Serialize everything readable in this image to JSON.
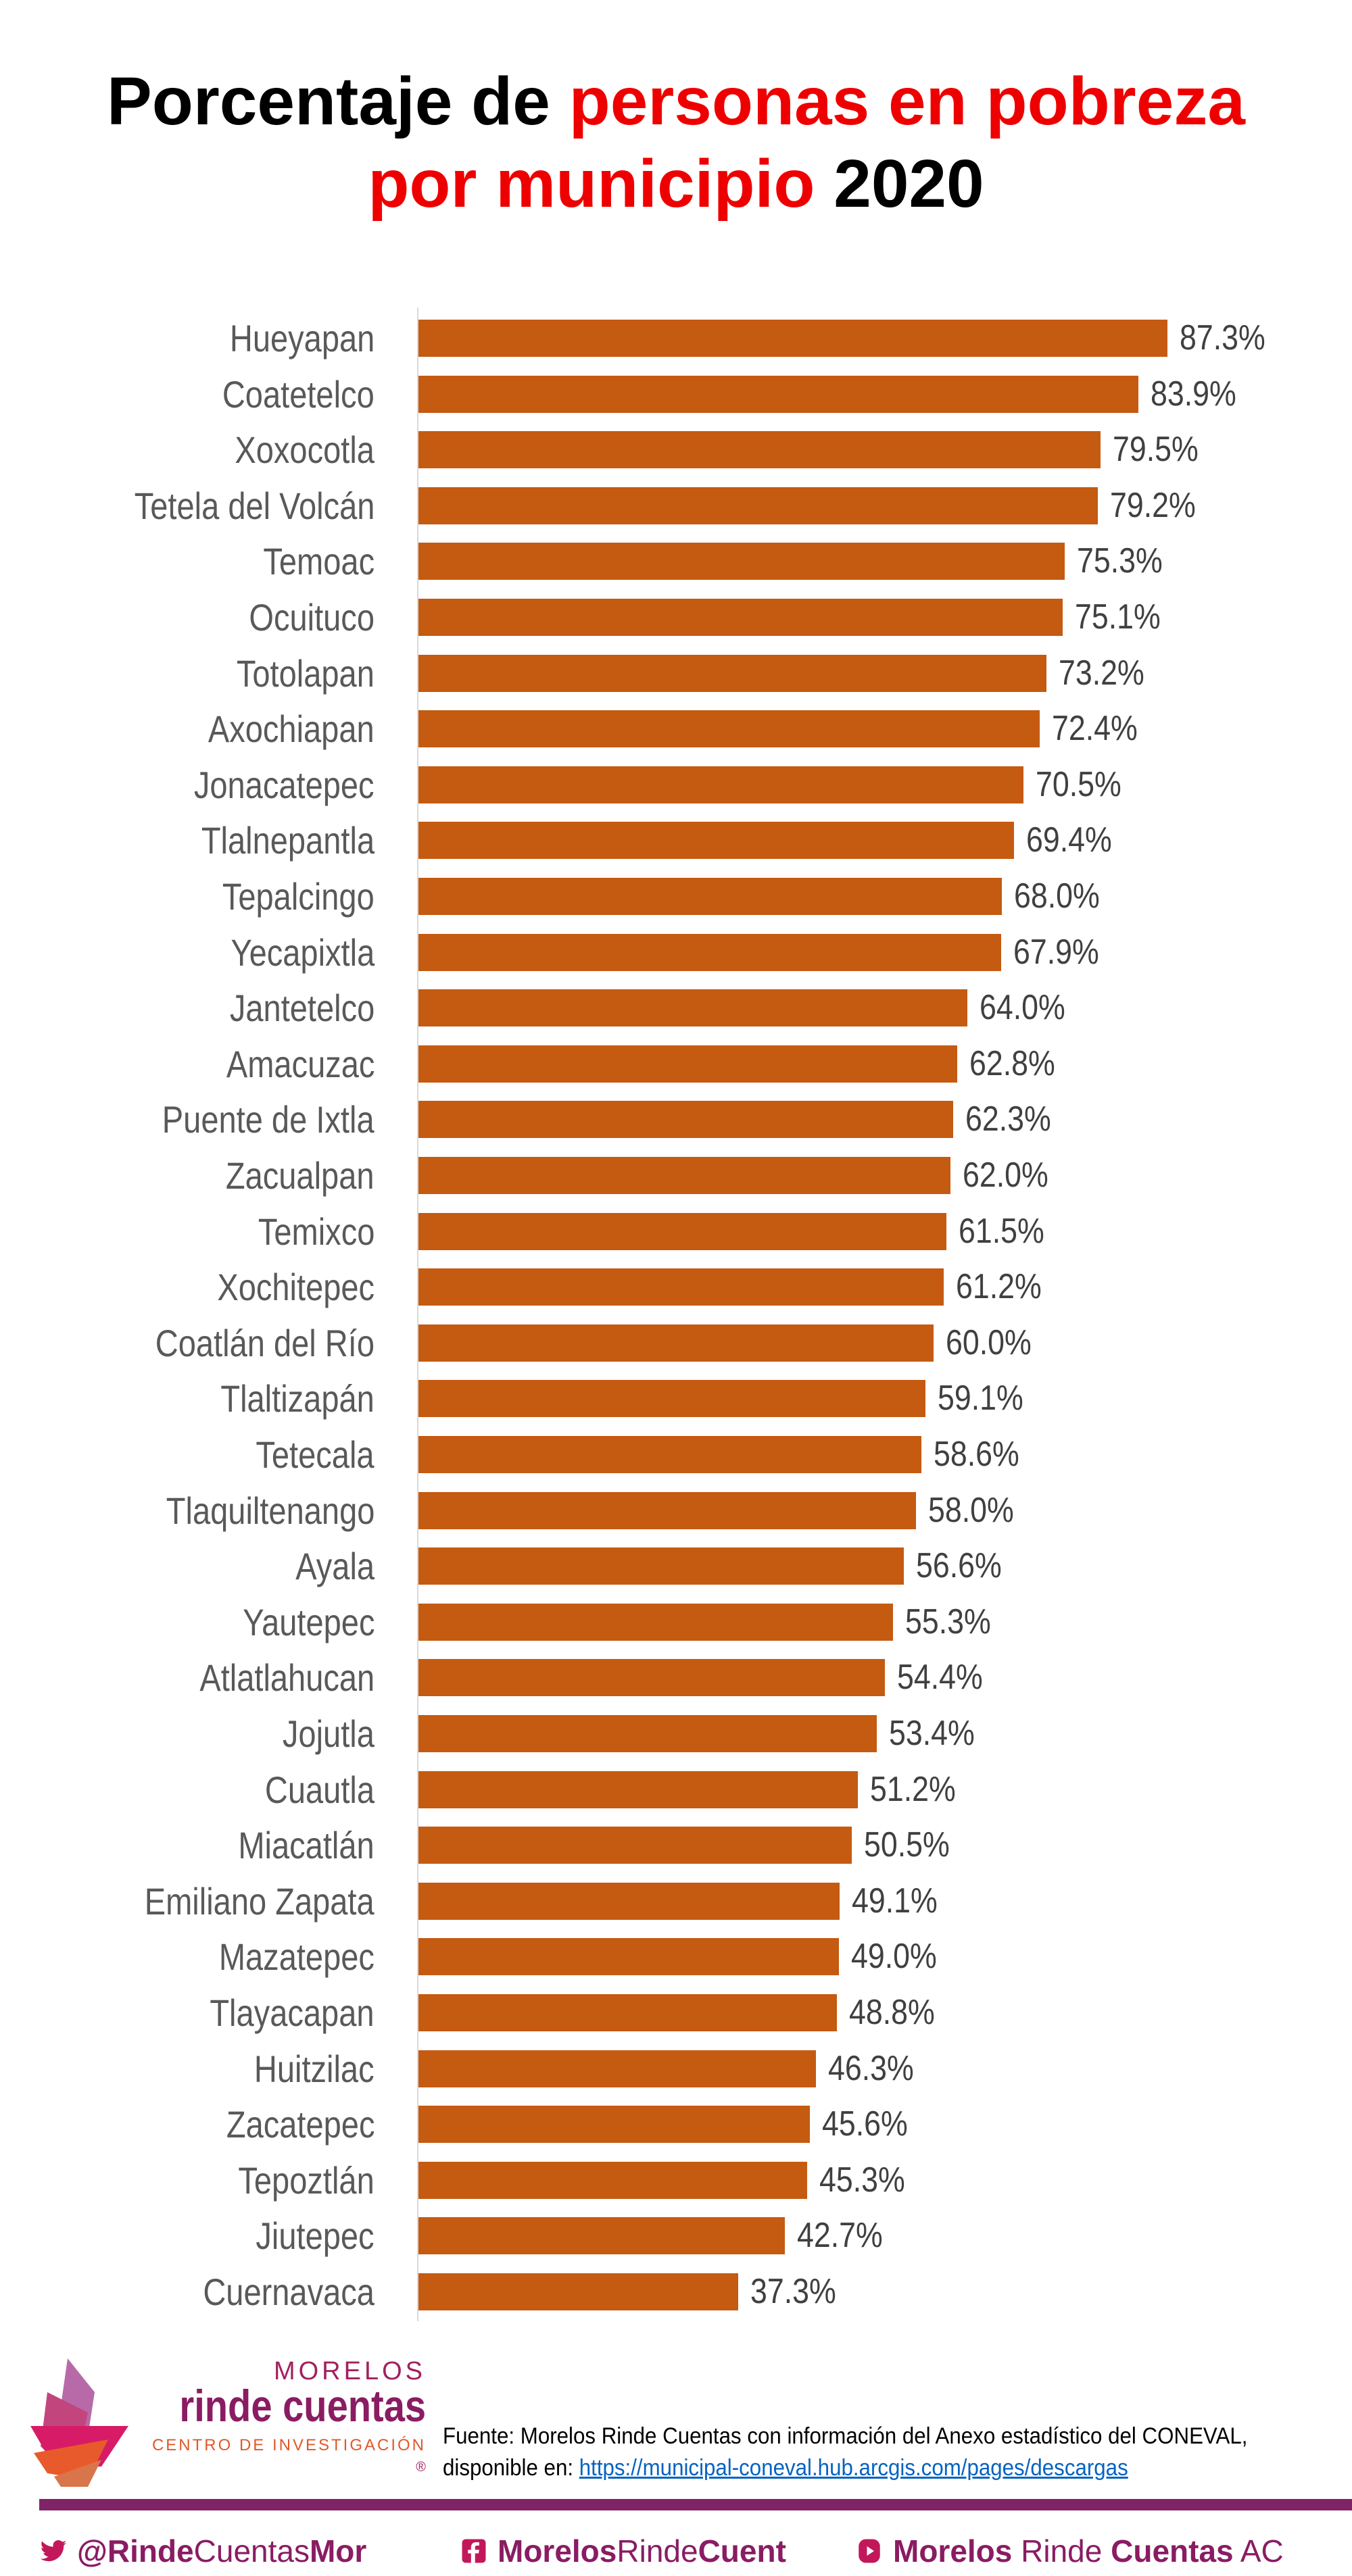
{
  "title": {
    "line1_black": "Porcentaje de ",
    "line1_red": "personas en pobreza",
    "line2_red": "por municipio",
    "line2_black": " 2020"
  },
  "chart_data": {
    "type": "bar",
    "orientation": "horizontal",
    "title": "Porcentaje de personas en pobreza por municipio 2020",
    "xlabel": "",
    "ylabel": "",
    "xlim": [
      0,
      100
    ],
    "grid": false,
    "bar_color": "#c55a11",
    "categories": [
      "Hueyapan",
      "Coatetelco",
      "Xoxocotla",
      "Tetela del Volcán",
      "Temoac",
      "Ocuituco",
      "Totolapan",
      "Axochiapan",
      "Jonacatepec",
      "Tlalnepantla",
      "Tepalcingo",
      "Yecapixtla",
      "Jantetelco",
      "Amacuzac",
      "Puente de Ixtla",
      "Zacualpan",
      "Temixco",
      "Xochitepec",
      "Coatlán del Río",
      "Tlaltizapán",
      "Tetecala",
      "Tlaquiltenango",
      "Ayala",
      "Yautepec",
      "Atlatlahucan",
      "Jojutla",
      "Cuautla",
      "Miacatlán",
      "Emiliano Zapata",
      "Mazatepec",
      "Tlayacapan",
      "Huitzilac",
      "Zacatepec",
      "Tepoztlán",
      "Jiutepec",
      "Cuernavaca"
    ],
    "values": [
      87.3,
      83.9,
      79.5,
      79.2,
      75.3,
      75.1,
      73.2,
      72.4,
      70.5,
      69.4,
      68.0,
      67.9,
      64.0,
      62.8,
      62.3,
      62.0,
      61.5,
      61.2,
      60.0,
      59.1,
      58.6,
      58.0,
      56.6,
      55.3,
      54.4,
      53.4,
      51.2,
      50.5,
      49.1,
      49.0,
      48.8,
      46.3,
      45.6,
      45.3,
      42.7,
      37.3
    ],
    "labels": [
      "87.3%",
      "83.9%",
      "79.5%",
      "79.2%",
      "75.3%",
      "75.1%",
      "73.2%",
      "72.4%",
      "70.5%",
      "69.4%",
      "68.0%",
      "67.9%",
      "64.0%",
      "62.8%",
      "62.3%",
      "62.0%",
      "61.5%",
      "61.2%",
      "60.0%",
      "59.1%",
      "58.6%",
      "58.0%",
      "56.6%",
      "55.3%",
      "54.4%",
      "53.4%",
      "51.2%",
      "50.5%",
      "49.1%",
      "49.0%",
      "48.8%",
      "46.3%",
      "45.6%",
      "45.3%",
      "42.7%",
      "37.3%"
    ]
  },
  "logo": {
    "line1": "MORELOS",
    "line2": "rinde cuentas",
    "line3": "CENTRO DE INVESTIGACIÓN",
    "mark": "®"
  },
  "source": {
    "line1": "Fuente: Morelos Rinde Cuentas con información del Anexo estadístico del CONEVAL,",
    "line2_prefix": "disponible en: ",
    "link": "https://municipal-coneval.hub.arcgis.com/pages/descargas"
  },
  "social": {
    "twitter": {
      "icon": "twitter-icon",
      "bold1": "@Rinde",
      "regular": "Cuentas",
      "bold2": "Mor"
    },
    "facebook": {
      "icon": "facebook-icon",
      "bold1": "Morelos",
      "regular": "Rinde",
      "bold2": "Cuent"
    },
    "youtube": {
      "icon": "youtube-icon",
      "bold1": "Morelos",
      "regular": " Rinde ",
      "bold2": "Cuentas",
      "regular2": " AC"
    }
  },
  "colors": {
    "accent_red": "#ee0000",
    "bar": "#c55a11",
    "brand_purple": "#7f2567"
  }
}
